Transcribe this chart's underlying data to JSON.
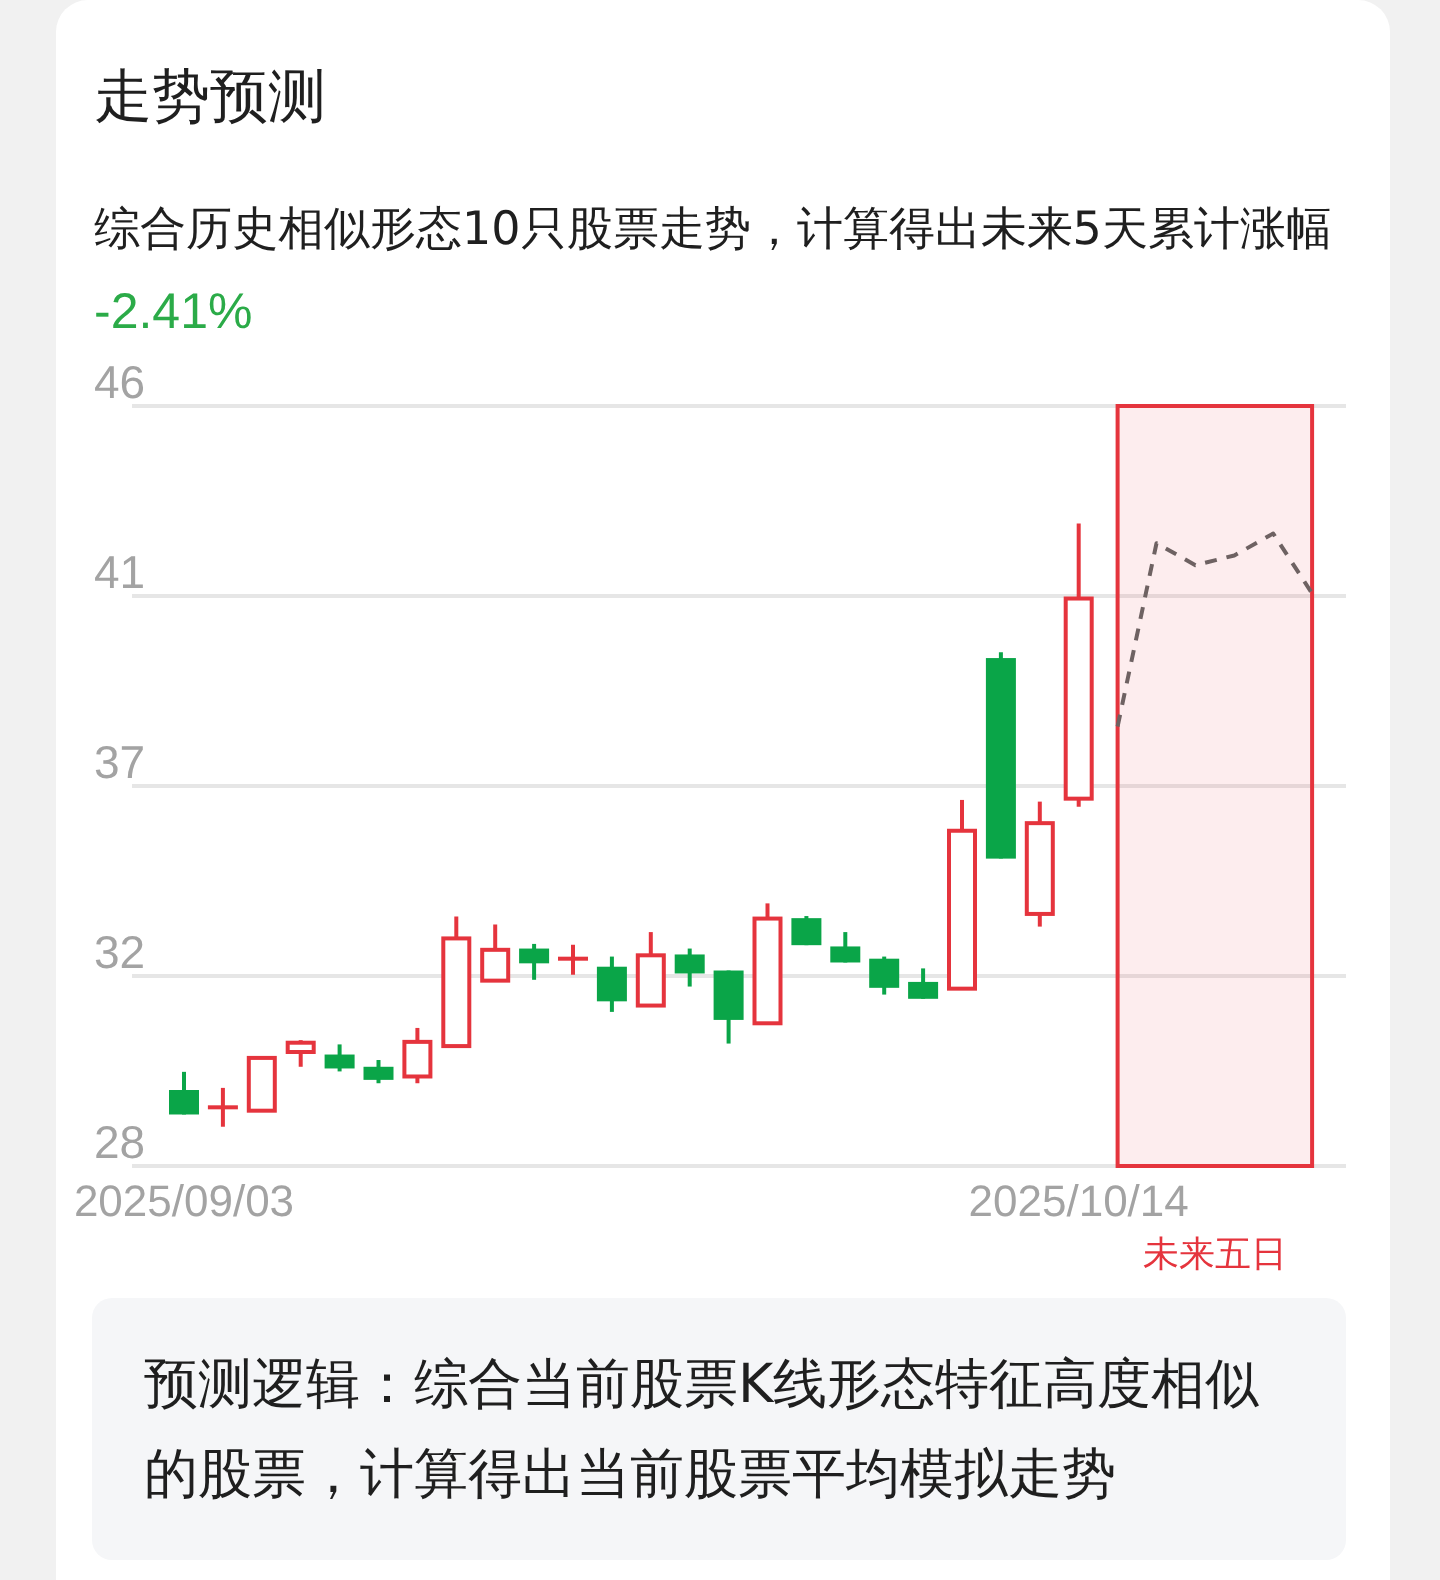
{
  "chart_data": {
    "type": "candlestick",
    "title": "走势预测",
    "subtitle": "综合历史相似形态10只股票走势，计算得出未来5天累计涨幅",
    "annotations": [
      "-2.41%",
      "未来五日",
      "预测逻辑：综合当前股票K线形态特征高度相似的股票，计算得出当前股票平均模拟走势"
    ],
    "categories": [
      "2025/09/03",
      null,
      null,
      null,
      null,
      null,
      null,
      null,
      null,
      null,
      null,
      null,
      null,
      null,
      null,
      null,
      null,
      null,
      null,
      null,
      null,
      null,
      null,
      "2025/10/14",
      null,
      null,
      null,
      null,
      null,
      null
    ],
    "ohlc": [
      [
        29.8,
        30.23,
        29.22,
        29.22
      ],
      [
        29.39,
        29.85,
        28.93,
        29.39
      ],
      [
        29.31,
        30.6,
        29.31,
        30.56
      ],
      [
        30.7,
        30.98,
        30.35,
        30.92
      ],
      [
        30.64,
        30.88,
        30.24,
        30.31
      ],
      [
        30.35,
        30.51,
        29.96,
        30.04
      ],
      [
        30.12,
        31.27,
        29.96,
        30.94
      ],
      [
        30.84,
        33.91,
        30.84,
        33.39
      ],
      [
        32.39,
        33.72,
        32.39,
        33.12
      ],
      [
        33.15,
        33.26,
        32.41,
        32.8
      ],
      [
        32.91,
        33.24,
        32.53,
        32.91
      ],
      [
        32.72,
        32.96,
        31.65,
        31.9
      ],
      [
        31.8,
        33.54,
        31.8,
        32.99
      ],
      [
        33.01,
        33.15,
        32.25,
        32.56
      ],
      [
        32.63,
        32.63,
        30.9,
        31.46
      ],
      [
        31.38,
        34.22,
        31.38,
        33.86
      ],
      [
        33.87,
        33.92,
        33.23,
        33.23
      ],
      [
        33.2,
        33.54,
        32.82,
        32.82
      ],
      [
        32.91,
        32.96,
        32.06,
        32.22
      ],
      [
        32.36,
        32.68,
        31.96,
        31.96
      ],
      [
        32.2,
        36.67,
        32.2,
        35.94
      ],
      [
        40.03,
        40.17,
        35.28,
        35.28
      ],
      [
        33.97,
        36.63,
        33.67,
        36.12
      ],
      [
        36.7,
        43.22,
        36.51,
        41.44
      ],
      null,
      null,
      null,
      null,
      null,
      null
    ],
    "colors": [
      "#0aa548",
      "#e5343d",
      "#e5343d",
      "#e5343d",
      "#0aa548",
      "#0aa548",
      "#e5343d",
      "#e5343d",
      "#e5343d",
      "#0aa548",
      "#e5343d",
      "#0aa548",
      "#e5343d",
      "#0aa548",
      "#0aa548",
      "#e5343d",
      "#0aa548",
      "#0aa548",
      "#0aa548",
      "#0aa548",
      "#e5343d",
      "#0aa548",
      "#e5343d",
      "#e5343d",
      null,
      null,
      null,
      null,
      null,
      null
    ],
    "series": [
      {
        "type": "line",
        "color": "#6e6262",
        "line_style": "dashed",
        "values": [
          null,
          null,
          null,
          null,
          null,
          null,
          null,
          null,
          null,
          null,
          null,
          null,
          null,
          null,
          null,
          null,
          null,
          null,
          null,
          null,
          null,
          null,
          null,
          null,
          38.41,
          42.75,
          42.23,
          42.46,
          42.98,
          41.56
        ]
      }
    ],
    "ylim": [
      28,
      46
    ],
    "yticks": [
      28,
      {
        "value": 32.5,
        "label": "32"
      },
      37,
      {
        "value": 41.5,
        "label": "41"
      },
      46
    ],
    "grid": "y"
  }
}
